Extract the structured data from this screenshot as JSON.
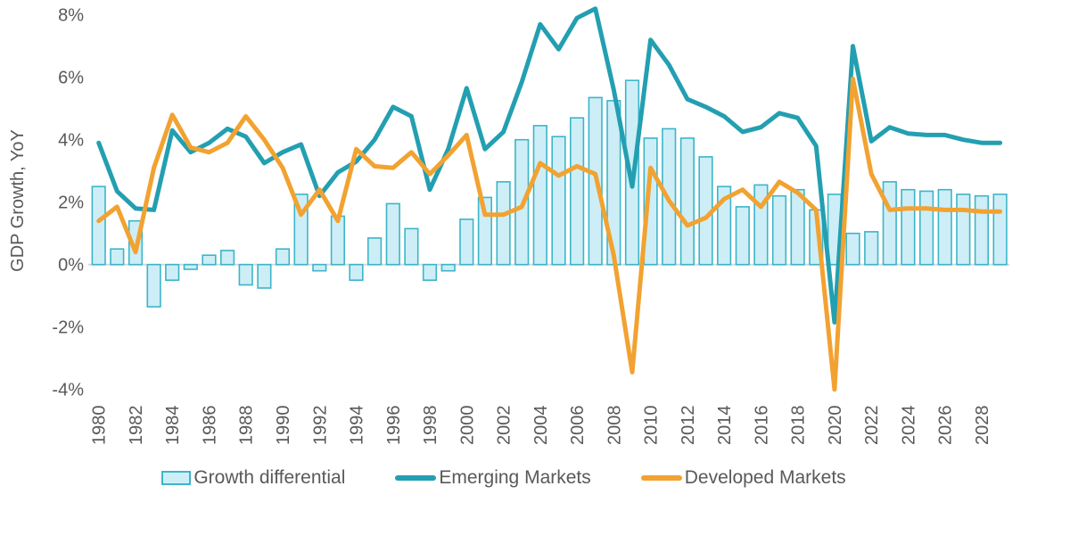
{
  "chart_data": {
    "type": "combo-bar-line",
    "title": "",
    "ylabel": "GDP Growth, YoY",
    "ylim": [
      -4,
      8
    ],
    "ytick_values": [
      8,
      6,
      4,
      2,
      0,
      -2,
      -4
    ],
    "ytick_labels": [
      "8%",
      "6%",
      "4%",
      "2%",
      "0%",
      "-2%",
      "-4%"
    ],
    "categories": [
      1980,
      1981,
      1982,
      1983,
      1984,
      1985,
      1986,
      1987,
      1988,
      1989,
      1990,
      1991,
      1992,
      1993,
      1994,
      1995,
      1996,
      1997,
      1998,
      1999,
      2000,
      2001,
      2002,
      2003,
      2004,
      2005,
      2006,
      2007,
      2008,
      2009,
      2010,
      2011,
      2012,
      2013,
      2014,
      2015,
      2016,
      2017,
      2018,
      2019,
      2020,
      2021,
      2022,
      2023,
      2024,
      2025,
      2026,
      2027,
      2028,
      2029
    ],
    "xtick_labels": [
      "1980",
      "1982",
      "1984",
      "1986",
      "1988",
      "1990",
      "1992",
      "1994",
      "1996",
      "1998",
      "2000",
      "2002",
      "2004",
      "2006",
      "2008",
      "2010",
      "2012",
      "2014",
      "2016",
      "2018",
      "2020",
      "2022",
      "2024",
      "2026",
      "2028"
    ],
    "grid": false,
    "legend_position": "bottom",
    "series": [
      {
        "name": "Growth differential",
        "type": "bar",
        "color_fill": "#cdeef7",
        "color_stroke": "#3db5c8",
        "values": [
          2.5,
          0.5,
          1.4,
          -1.35,
          -0.5,
          -0.15,
          0.3,
          0.45,
          -0.65,
          -0.75,
          0.5,
          2.25,
          -0.2,
          1.55,
          -0.5,
          0.85,
          1.95,
          1.15,
          -0.5,
          -0.2,
          1.45,
          2.15,
          2.65,
          4.0,
          4.45,
          4.1,
          4.7,
          5.35,
          5.25,
          5.9,
          4.05,
          4.35,
          4.05,
          3.45,
          2.5,
          1.85,
          2.55,
          2.2,
          2.4,
          1.75,
          2.25,
          1.0,
          1.05,
          2.65,
          2.4,
          2.35,
          2.4,
          2.25,
          2.2,
          2.25
        ]
      },
      {
        "name": "Emerging Markets",
        "type": "line",
        "color": "#239fb1",
        "values": [
          3.9,
          2.35,
          1.8,
          1.75,
          4.3,
          3.6,
          3.9,
          4.35,
          4.1,
          3.25,
          3.6,
          3.85,
          2.2,
          2.95,
          3.3,
          4.0,
          5.05,
          4.75,
          2.4,
          3.7,
          5.65,
          3.7,
          4.25,
          5.85,
          7.7,
          6.9,
          7.9,
          8.2,
          5.6,
          2.5,
          7.2,
          6.4,
          5.3,
          5.05,
          4.75,
          4.25,
          4.4,
          4.85,
          4.7,
          3.8,
          -1.85,
          7.0,
          3.95,
          4.4,
          4.2,
          4.15,
          4.15,
          4.0,
          3.9,
          3.9
        ]
      },
      {
        "name": "Developed Markets",
        "type": "line",
        "color": "#f2a231",
        "values": [
          1.4,
          1.85,
          0.4,
          3.1,
          4.8,
          3.75,
          3.6,
          3.9,
          4.75,
          4.0,
          3.1,
          1.6,
          2.4,
          1.4,
          3.7,
          3.15,
          3.1,
          3.6,
          2.9,
          3.5,
          4.15,
          1.6,
          1.6,
          1.85,
          3.25,
          2.85,
          3.15,
          2.9,
          0.3,
          -3.45,
          3.1,
          2.05,
          1.25,
          1.5,
          2.1,
          2.4,
          1.85,
          2.65,
          2.3,
          1.75,
          -4.0,
          5.95,
          2.9,
          1.75,
          1.8,
          1.8,
          1.75,
          1.75,
          1.7,
          1.7
        ]
      }
    ],
    "colors": {
      "text": "#595959",
      "zero_line": "#d9d9d9",
      "background": "#ffffff"
    }
  },
  "legend": {
    "items": [
      {
        "label": "Growth differential"
      },
      {
        "label": "Emerging Markets"
      },
      {
        "label": "Developed Markets"
      }
    ]
  }
}
